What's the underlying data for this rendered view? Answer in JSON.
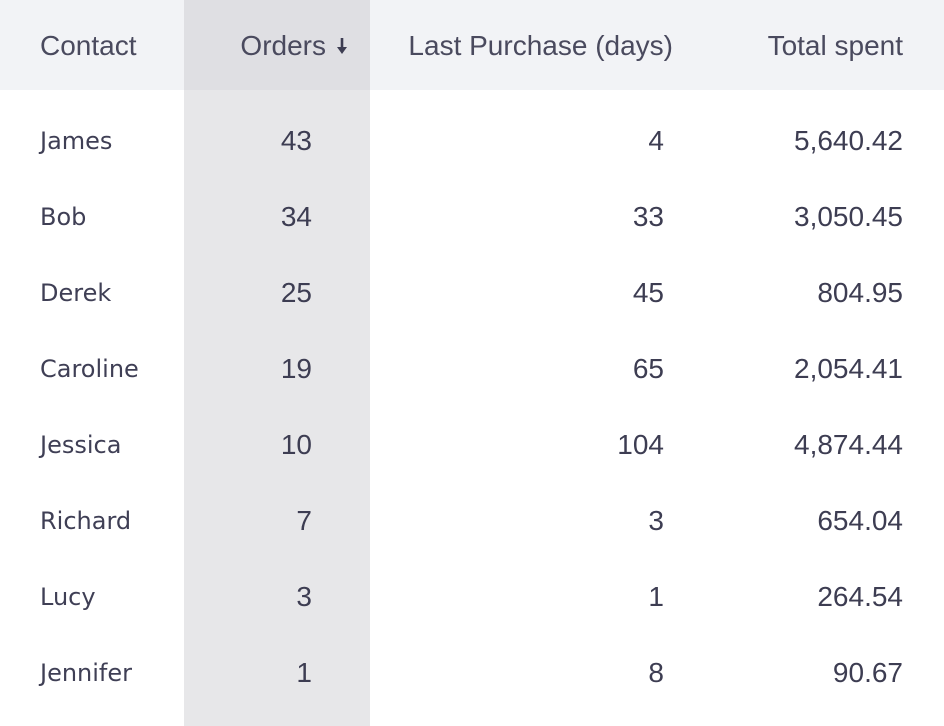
{
  "table": {
    "columns": {
      "contact": "Contact",
      "orders": "Orders",
      "last_purchase": "Last Purchase (days)",
      "total_spent": "Total spent"
    },
    "sort": {
      "column": "orders",
      "direction": "descending",
      "icon": "arrow-down-icon"
    },
    "rows": [
      {
        "contact": "James",
        "orders": "43",
        "last_purchase": "4",
        "total_spent": "5,640.42"
      },
      {
        "contact": "Bob",
        "orders": "34",
        "last_purchase": "33",
        "total_spent": "3,050.45"
      },
      {
        "contact": "Derek",
        "orders": "25",
        "last_purchase": "45",
        "total_spent": "804.95"
      },
      {
        "contact": "Caroline",
        "orders": "19",
        "last_purchase": "65",
        "total_spent": "2,054.41"
      },
      {
        "contact": "Jessica",
        "orders": "10",
        "last_purchase": "104",
        "total_spent": "4,874.44"
      },
      {
        "contact": "Richard",
        "orders": "7",
        "last_purchase": "3",
        "total_spent": "654.04"
      },
      {
        "contact": "Lucy",
        "orders": "3",
        "last_purchase": "1",
        "total_spent": "264.54"
      },
      {
        "contact": "Jennifer",
        "orders": "1",
        "last_purchase": "8",
        "total_spent": "90.67"
      }
    ]
  },
  "colors": {
    "header_bg": "#f2f3f6",
    "sorted_column_bg": "#e7e7e9",
    "sorted_header_bg": "#dfdfe3",
    "text": "#3d3d52"
  }
}
